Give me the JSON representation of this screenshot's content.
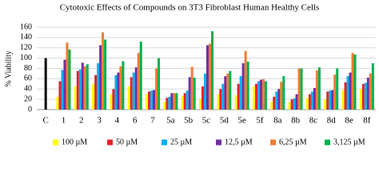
{
  "chart_data": {
    "type": "bar",
    "title": "Cytotoxic Effects of Compounds on 3T3 Fibroblast Human Healthy Cells",
    "y_label": "% Viability",
    "categories": [
      "C",
      "1",
      "2",
      "3",
      "4",
      "6",
      "7",
      "5a",
      "5b",
      "5c",
      "5d",
      "5e",
      "5f",
      "8a",
      "8b",
      "8c",
      "8d",
      "8e",
      "8f"
    ],
    "series": [
      {
        "name": "100 µM",
        "color": "#ffff00",
        "values": [
          null,
          25,
          45,
          50,
          30,
          45,
          30,
          15,
          27,
          20,
          30,
          28,
          45,
          15,
          15,
          22,
          20,
          37,
          40
        ]
      },
      {
        "name": "50 µM",
        "color": "#e8202a",
        "values": [
          null,
          55,
          75,
          67,
          40,
          63,
          35,
          23,
          32,
          45,
          40,
          50,
          50,
          25,
          20,
          30,
          35,
          53,
          50
        ]
      },
      {
        "name": "25 µM",
        "color": "#00b0f0",
        "values": [
          null,
          77,
          78,
          90,
          67,
          72,
          37,
          25,
          37,
          70,
          50,
          65,
          55,
          35,
          22,
          35,
          37,
          65,
          52
        ]
      },
      {
        "name": "12,5 µM",
        "color": "#7030a0",
        "values": [
          null,
          97,
          91,
          125,
          72,
          82,
          38,
          32,
          63,
          125,
          65,
          90,
          58,
          40,
          30,
          42,
          38,
          72,
          62
        ]
      },
      {
        "name": "6,25 µM",
        "color": "#ed7d31",
        "values": [
          null,
          130,
          84,
          150,
          84,
          110,
          80,
          32,
          83,
          128,
          70,
          114,
          59,
          54,
          80,
          76,
          68,
          110,
          70
        ]
      },
      {
        "name": "3,125 µM",
        "color": "#00b050",
        "values": [
          null,
          117,
          88,
          136,
          94,
          132,
          100,
          32,
          62,
          152,
          75,
          93,
          55,
          65,
          80,
          82,
          80,
          107,
          90
        ]
      },
      {
        "color": "#000000",
        "values": [
          100,
          null,
          null,
          null,
          null,
          null,
          null,
          null,
          null,
          null,
          null,
          null,
          null,
          null,
          null,
          null,
          null,
          null,
          null
        ]
      }
    ],
    "ylim": [
      0,
      160
    ],
    "yticks": [
      0,
      20,
      40,
      60,
      80,
      100,
      120,
      140,
      160
    ],
    "grid": true
  }
}
